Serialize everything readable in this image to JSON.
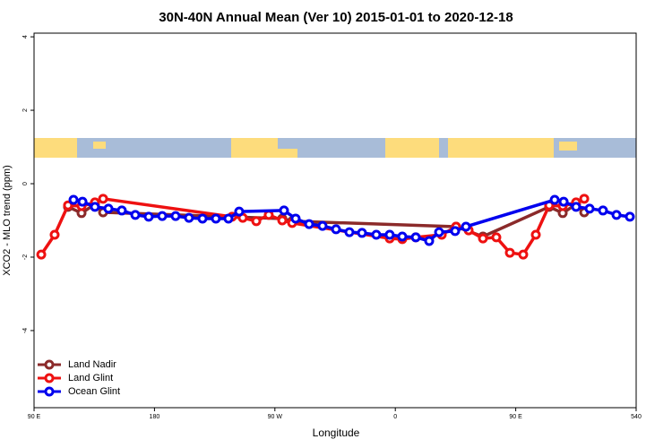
{
  "chart_data": {
    "type": "line",
    "title": "30N-40N Annual Mean (Ver 10)   2015-01-01 to 2020-12-18",
    "xlabel": "Longitude",
    "ylabel": "XCO2 - MLO trend (ppm)",
    "xlim": [
      90,
      540
    ],
    "ylim": [
      -6.1,
      4.1
    ],
    "xticks": [
      {
        "value": 90,
        "label": "90 E"
      },
      180,
      {
        "value": 270,
        "label": "90 W"
      },
      {
        "value": 360,
        "label": "0"
      },
      {
        "value": 450,
        "label": "90 E"
      },
      540
    ],
    "yticks": [
      -4,
      -2,
      0,
      2,
      4
    ],
    "legend": "bottom-left",
    "series": [
      {
        "name": "Land Nadir",
        "color": "#8b2a2a",
        "x": [
          115.4,
          125.5,
          135.5,
          141.6,
          275.5,
          282.9,
          405.4,
          425.5,
          475.0,
          485.1,
          495.1,
          501.2
        ],
        "values": [
          -0.63,
          -0.8,
          -0.56,
          -0.78,
          -0.95,
          -1.02,
          -1.17,
          -1.44,
          -0.63,
          -0.8,
          -0.56,
          -0.78
        ]
      },
      {
        "name": "Land Glint",
        "color": "#ee1111",
        "x": [
          95.4,
          105.4,
          115.4,
          125.5,
          135.5,
          141.6,
          238.0,
          246.0,
          256.1,
          265.4,
          275.5,
          282.9,
          355.8,
          365.2,
          375.3,
          394.7,
          405.4,
          414.8,
          425.5,
          435.5,
          445.6,
          455.6,
          465.0,
          475.0,
          485.1,
          495.1,
          501.2
        ],
        "values": [
          -1.93,
          -1.39,
          -0.59,
          -0.61,
          -0.51,
          -0.41,
          -0.9,
          -0.93,
          -1.02,
          -0.85,
          -1.0,
          -1.07,
          -1.49,
          -1.51,
          -1.46,
          -1.39,
          -1.17,
          -1.27,
          -1.49,
          -1.46,
          -1.88,
          -1.93,
          -1.39,
          -0.59,
          -0.61,
          -0.51,
          -0.41
        ]
      },
      {
        "name": "Ocean Glint",
        "color": "#0000ee",
        "x": [
          119.5,
          126.2,
          135.5,
          145.6,
          155.6,
          165.7,
          175.7,
          185.8,
          195.8,
          205.8,
          215.9,
          225.9,
          235.3,
          243.3,
          276.8,
          285.5,
          295.6,
          305.6,
          315.7,
          325.7,
          335.1,
          345.8,
          355.8,
          365.2,
          375.3,
          385.3,
          392.7,
          404.7,
          412.8,
          479.1,
          485.8,
          495.1,
          505.2,
          515.2,
          525.3,
          535.3
        ],
        "values": [
          -0.44,
          -0.49,
          -0.63,
          -0.68,
          -0.73,
          -0.85,
          -0.9,
          -0.88,
          -0.88,
          -0.93,
          -0.95,
          -0.95,
          -0.95,
          -0.76,
          -0.73,
          -0.95,
          -1.1,
          -1.15,
          -1.24,
          -1.32,
          -1.34,
          -1.39,
          -1.39,
          -1.44,
          -1.46,
          -1.56,
          -1.32,
          -1.29,
          -1.17,
          -0.44,
          -0.49,
          -0.63,
          -0.68,
          -0.73,
          -0.85,
          -0.9
        ]
      }
    ]
  }
}
